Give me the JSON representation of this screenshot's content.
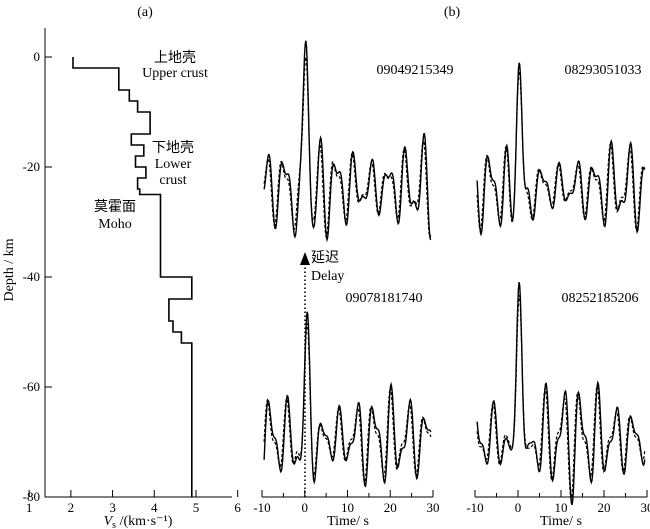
{
  "chart_data": [
    {
      "type": "line",
      "panel_label": "(a)",
      "xlabel": "Vs /(km·s⁻¹)",
      "xlabel_main": "V",
      "xlabel_sub": "s",
      "xlabel_rest": " /(km·s⁻¹)",
      "ylabel": "Depth / km",
      "xlim": [
        1,
        6
      ],
      "ylim": [
        -80,
        6
      ],
      "xticks": [
        1,
        2,
        3,
        4,
        5,
        6
      ],
      "yticks": [
        0,
        -20,
        -40,
        -60,
        -80
      ],
      "xtick_labels": [
        "1",
        "2",
        "3",
        "4",
        "5",
        "6"
      ],
      "ytick_labels": [
        "0",
        "-20",
        "-40",
        "-60",
        "-80"
      ],
      "series": [
        {
          "profile": [
            [
              2.05,
              0
            ],
            [
              2.05,
              -2
            ],
            [
              3.15,
              -2
            ],
            [
              3.15,
              -6
            ],
            [
              3.4,
              -6
            ],
            [
              3.4,
              -8
            ],
            [
              3.6,
              -8
            ],
            [
              3.6,
              -10
            ],
            [
              3.9,
              -10
            ],
            [
              3.9,
              -14
            ],
            [
              3.45,
              -14
            ],
            [
              3.45,
              -16
            ],
            [
              3.75,
              -16
            ],
            [
              3.75,
              -18
            ],
            [
              3.55,
              -18
            ],
            [
              3.55,
              -20
            ],
            [
              3.8,
              -20
            ],
            [
              3.8,
              -22
            ],
            [
              3.6,
              -22
            ],
            [
              3.6,
              -24
            ],
            [
              3.65,
              -24
            ],
            [
              3.65,
              -25
            ],
            [
              4.15,
              -25
            ],
            [
              4.15,
              -40
            ],
            [
              4.9,
              -40
            ],
            [
              4.9,
              -44
            ],
            [
              4.35,
              -44
            ],
            [
              4.35,
              -48
            ],
            [
              4.45,
              -48
            ],
            [
              4.45,
              -50
            ],
            [
              4.65,
              -50
            ],
            [
              4.65,
              -52
            ],
            [
              4.9,
              -52
            ],
            [
              4.9,
              -80
            ]
          ]
        }
      ],
      "annotations": [
        {
          "zh": "上地壳",
          "en": "Upper crust"
        },
        {
          "zh": "下地壳",
          "en_line1": "Lower",
          "en_line2": "crust"
        },
        {
          "zh": "莫霍面",
          "en": "Moho"
        }
      ]
    },
    {
      "type": "line",
      "panel_label": "(b)",
      "xlabel": "Time/ s",
      "xlim": [
        -10,
        30
      ],
      "xticks": [
        -10,
        0,
        10,
        20,
        30
      ],
      "xtick_labels": [
        "-10",
        "0",
        "10",
        "20",
        "30"
      ],
      "delay_label_zh": "延迟",
      "delay_label_en": "Delay",
      "waveforms": [
        {
          "station": "09049215349",
          "peak_time": 0.3,
          "peak_amplitude": 1.0
        },
        {
          "station": "08293051033",
          "peak_time": 0.3,
          "peak_amplitude": 1.0
        },
        {
          "station": "09078181740",
          "peak_time": 0.6,
          "peak_amplitude": 0.85,
          "delayed": true
        },
        {
          "station": "08252185206",
          "peak_time": 0.3,
          "peak_amplitude": 1.0
        }
      ]
    }
  ]
}
